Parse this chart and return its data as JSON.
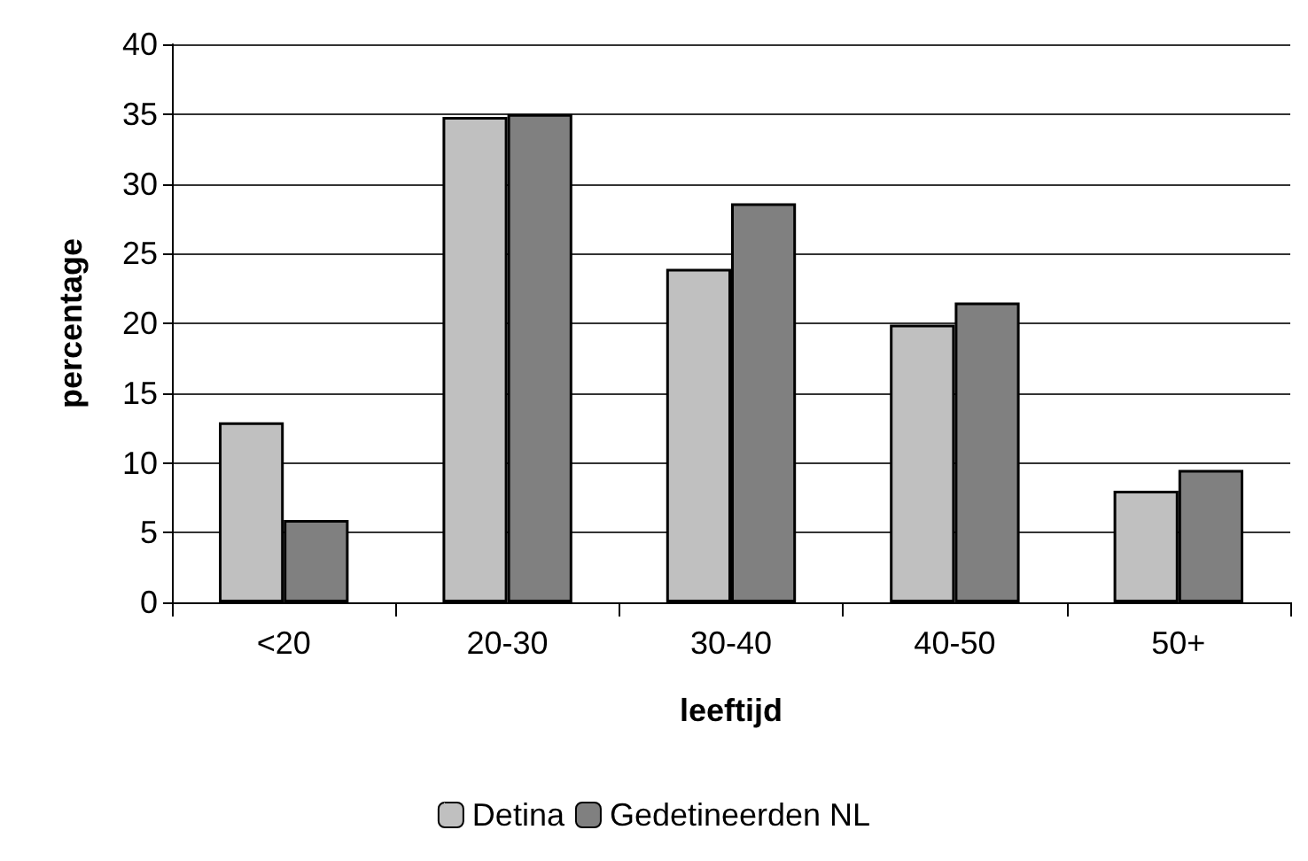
{
  "chart_data": {
    "type": "bar",
    "xlabel": "leeftijd",
    "ylabel": "percentage",
    "categories": [
      "<20",
      "20-30",
      "30-40",
      "40-50",
      "50+"
    ],
    "series": [
      {
        "name": "Detina",
        "color": "#c0c0c0",
        "values": [
          12.9,
          34.8,
          23.9,
          19.9,
          8.0
        ]
      },
      {
        "name": "Gedetineerden NL",
        "color": "#808080",
        "values": [
          5.9,
          35.0,
          28.6,
          21.5,
          9.5
        ]
      }
    ],
    "ylim": [
      0,
      40
    ],
    "yticks": [
      0,
      5,
      10,
      15,
      20,
      25,
      30,
      35,
      40
    ],
    "grid": "y",
    "legend": "bottom"
  }
}
